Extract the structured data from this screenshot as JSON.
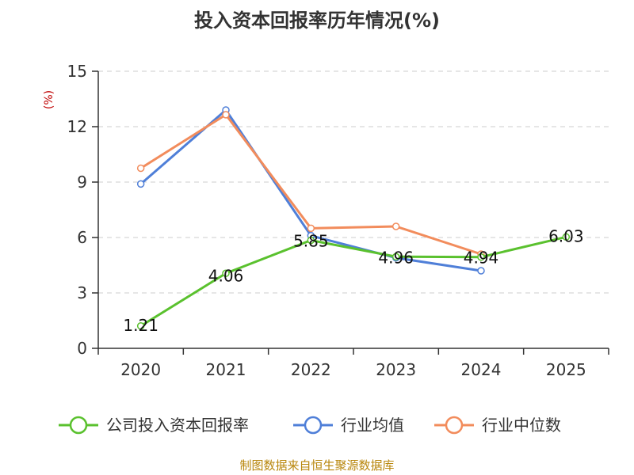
{
  "chart_data": {
    "type": "line",
    "title": "投入资本回报率历年情况(%)",
    "ylabel": "(%)",
    "xlabel": "",
    "categories": [
      "2020",
      "2021",
      "2022",
      "2023",
      "2024",
      "2025"
    ],
    "ylim": [
      0,
      15
    ],
    "yticks": [
      "0",
      "3",
      "6",
      "9",
      "12",
      "15"
    ],
    "grid": true,
    "legend_position": "bottom",
    "series": [
      {
        "name": "公司投入资本回报率",
        "color": "#5ac12e",
        "values": [
          1.21,
          4.06,
          5.85,
          4.96,
          4.94,
          6.03
        ],
        "labels": [
          "1.21",
          "4.06",
          "5.85",
          "4.96",
          "4.94",
          "6.03"
        ]
      },
      {
        "name": "行业均值",
        "color": "#4f7fd8",
        "values": [
          8.9,
          12.9,
          6.1,
          4.9,
          4.2,
          null
        ]
      },
      {
        "name": "行业中位数",
        "color": "#f28c5c",
        "values": [
          9.75,
          12.65,
          6.5,
          6.6,
          5.1,
          null
        ]
      }
    ]
  },
  "source": "制图数据来自恒生聚源数据库"
}
